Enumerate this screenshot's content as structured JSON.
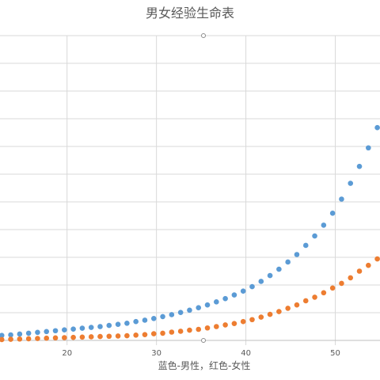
{
  "chart_data": {
    "type": "scatter",
    "title": "男女经验生命表",
    "xlabel": "蓝色-男性，红色-女性",
    "ylabel": "",
    "xlim": [
      12.5,
      55
    ],
    "ylim": [
      0,
      11
    ],
    "x_ticks": [
      20,
      30,
      40,
      50
    ],
    "grid": true,
    "legend": "none",
    "colors": {
      "male": "#5b9bd5",
      "female": "#ed7d31",
      "grid": "#d9d9d9",
      "text": "#595959"
    },
    "series": [
      {
        "key": "male",
        "color": "#5b9bd5",
        "x": [
          12.7,
          13.7,
          14.7,
          15.7,
          16.7,
          17.7,
          18.7,
          19.7,
          20.7,
          21.7,
          22.7,
          23.7,
          24.7,
          25.7,
          26.7,
          27.7,
          28.7,
          29.7,
          30.7,
          31.7,
          32.7,
          33.7,
          34.7,
          35.7,
          36.7,
          37.7,
          38.7,
          39.7,
          40.7,
          41.7,
          42.7,
          43.7,
          44.7,
          45.7,
          46.7,
          47.7,
          48.7,
          49.7,
          50.7,
          51.7,
          52.7,
          53.7,
          54.7
        ],
        "y": [
          0.18,
          0.2,
          0.23,
          0.26,
          0.29,
          0.32,
          0.35,
          0.38,
          0.41,
          0.44,
          0.47,
          0.5,
          0.54,
          0.58,
          0.62,
          0.68,
          0.73,
          0.79,
          0.86,
          0.93,
          1.01,
          1.09,
          1.18,
          1.28,
          1.39,
          1.51,
          1.64,
          1.78,
          1.94,
          2.13,
          2.34,
          2.57,
          2.83,
          3.1,
          3.43,
          3.77,
          4.16,
          4.59,
          5.1,
          5.67,
          6.28,
          6.95,
          7.68
        ]
      },
      {
        "key": "female",
        "color": "#ed7d31",
        "x": [
          12.7,
          13.7,
          14.7,
          15.7,
          16.7,
          17.7,
          18.7,
          19.7,
          20.7,
          21.7,
          22.7,
          23.7,
          24.7,
          25.7,
          26.7,
          27.7,
          28.7,
          29.7,
          30.7,
          31.7,
          32.7,
          33.7,
          34.7,
          35.7,
          36.7,
          37.7,
          38.7,
          39.7,
          40.7,
          41.7,
          42.7,
          43.7,
          44.7,
          45.7,
          46.7,
          47.7,
          48.7,
          49.7,
          50.7,
          51.7,
          52.7,
          53.7,
          54.7
        ],
        "y": [
          0.03,
          0.04,
          0.05,
          0.06,
          0.07,
          0.08,
          0.09,
          0.1,
          0.11,
          0.12,
          0.13,
          0.14,
          0.15,
          0.16,
          0.17,
          0.19,
          0.21,
          0.24,
          0.26,
          0.3,
          0.33,
          0.37,
          0.4,
          0.45,
          0.5,
          0.56,
          0.61,
          0.68,
          0.75,
          0.84,
          0.94,
          1.04,
          1.16,
          1.28,
          1.43,
          1.56,
          1.72,
          1.89,
          2.06,
          2.26,
          2.5,
          2.71,
          2.94
        ]
      }
    ]
  }
}
